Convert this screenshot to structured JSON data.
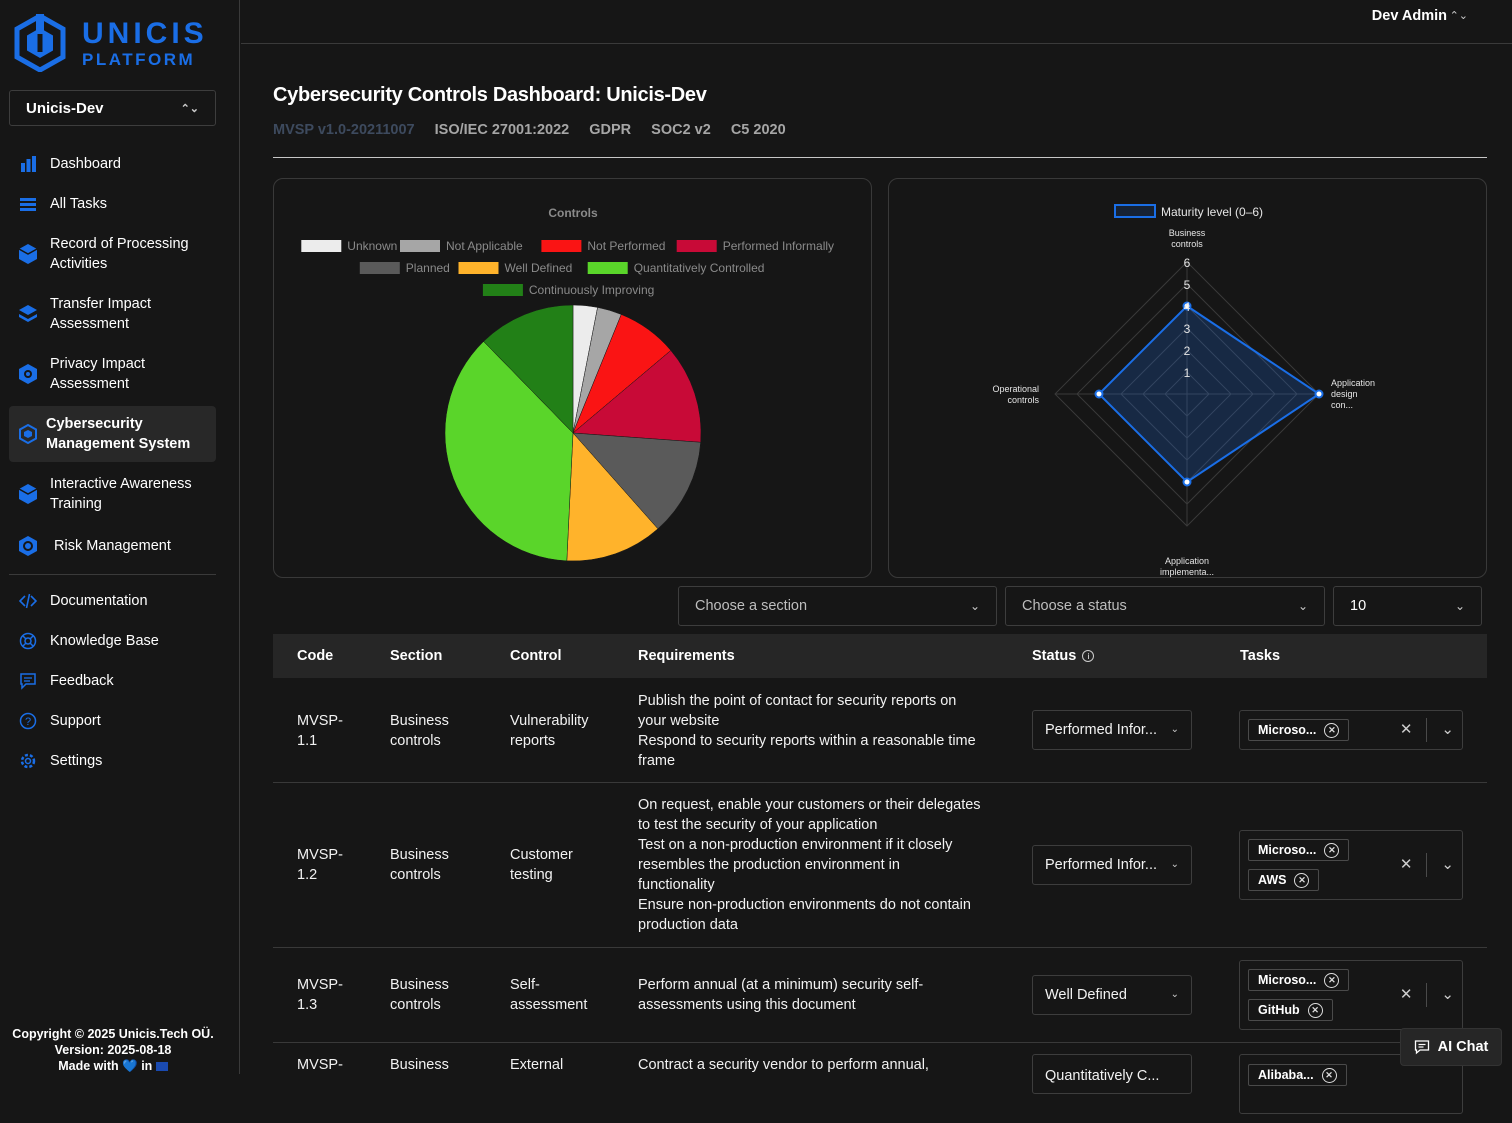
{
  "brand": {
    "line1": "UNICIS",
    "line2": "PLATFORM"
  },
  "tenant": {
    "name": "Unicis-Dev"
  },
  "user": {
    "name": "Dev Admin"
  },
  "sidebar": {
    "items": [
      {
        "label": "Dashboard",
        "icon": "bar-chart-icon"
      },
      {
        "label": "All Tasks",
        "icon": "list-icon"
      },
      {
        "label": "Record of Processing Activities",
        "icon": "cube-icon"
      },
      {
        "label": "Transfer Impact Assessment",
        "icon": "layers-icon"
      },
      {
        "label": "Privacy Impact Assessment",
        "icon": "shield-cog-icon"
      },
      {
        "label": "Cybersecurity Management System",
        "icon": "hexagon-icon"
      },
      {
        "label": "Interactive Awareness Training",
        "icon": "cube-icon"
      },
      {
        "label": "Risk Management",
        "icon": "hexagon-gear-icon"
      }
    ],
    "secondary": [
      {
        "label": "Documentation",
        "icon": "code-icon"
      },
      {
        "label": "Knowledge Base",
        "icon": "lifebuoy-icon"
      },
      {
        "label": "Feedback",
        "icon": "chat-icon"
      },
      {
        "label": "Support",
        "icon": "question-icon"
      },
      {
        "label": "Settings",
        "icon": "gear-icon"
      }
    ],
    "footer": {
      "copyright": "Copyright © 2025 Unicis.Tech OÜ.",
      "version": "Version: 2025-08-18",
      "made_with": "Made with",
      "in": "in"
    }
  },
  "page": {
    "title": "Cybersecurity Controls Dashboard: Unicis-Dev",
    "tabs": [
      "MVSP v1.0-20211007",
      "ISO/IEC 27001:2022",
      "GDPR",
      "SOC2 v2",
      "C5 2020"
    ]
  },
  "chart_data": [
    {
      "type": "pie",
      "title": "Controls",
      "categories": [
        "Unknown",
        "Not Applicable",
        "Not Performed",
        "Performed Informally",
        "Planned",
        "Well Defined",
        "Quantitatively Controlled",
        "Continuously Improving"
      ],
      "values": [
        2,
        2,
        5,
        8,
        8,
        8,
        24,
        8
      ],
      "colors": [
        "#ececec",
        "#a6a6a6",
        "#fa1414",
        "#c80a37",
        "#5a5a5a",
        "#ffb32b",
        "#5ad52a",
        "#228017"
      ]
    },
    {
      "type": "radar",
      "series": [
        {
          "name": "Maturity level (0–6)",
          "values": [
            4,
            6,
            4,
            4
          ]
        }
      ],
      "categories": [
        "Business controls",
        "Application design con...",
        "Application implementa...",
        "Operational controls"
      ],
      "ylim": [
        0,
        6
      ],
      "ticks": [
        "1",
        "2",
        "3",
        "4",
        "5",
        "6"
      ]
    }
  ],
  "filters": {
    "section": "Choose a section",
    "status": "Choose a status",
    "page_size": "10"
  },
  "table": {
    "headers": [
      "Code",
      "Section",
      "Control",
      "Requirements",
      "Status",
      "Tasks"
    ],
    "rows": [
      {
        "code": [
          "MVSP-",
          "1.1"
        ],
        "section": [
          "Business",
          "controls"
        ],
        "control": [
          "Vulnerability",
          "reports"
        ],
        "requirements": [
          "Publish the point of contact for security reports on",
          "your website",
          "Respond to security reports within a reasonable time",
          "frame"
        ],
        "status": "Performed Infor...",
        "tasks": [
          "Microso..."
        ]
      },
      {
        "code": [
          "MVSP-",
          "1.2"
        ],
        "section": [
          "Business",
          "controls"
        ],
        "control": [
          "Customer",
          "testing"
        ],
        "requirements": [
          "On request, enable your customers or their delegates",
          "to test the security of your application",
          "Test on a non-production environment if it closely",
          "resembles the production environment in",
          "functionality",
          "Ensure non-production environments do not contain",
          "production data"
        ],
        "status": "Performed Infor...",
        "tasks": [
          "Microso...",
          "AWS"
        ]
      },
      {
        "code": [
          "MVSP-",
          "1.3"
        ],
        "section": [
          "Business",
          "controls"
        ],
        "control": [
          "Self-",
          "assessment"
        ],
        "requirements": [
          "Perform annual (at a minimum) security self-",
          "assessments using this document"
        ],
        "status": "Well Defined",
        "tasks": [
          "Microso...",
          "GitHub"
        ]
      },
      {
        "code": [
          "MVSP-"
        ],
        "section": [
          "Business"
        ],
        "control": [
          "External"
        ],
        "requirements": [
          "Contract a security vendor to perform annual,"
        ],
        "status": "Quantitatively C...",
        "tasks": [
          "Alibaba..."
        ]
      }
    ]
  },
  "ai_chat": {
    "label": "AI Chat"
  },
  "colors": {
    "accent": "#1a6ee6",
    "background": "#161616"
  }
}
